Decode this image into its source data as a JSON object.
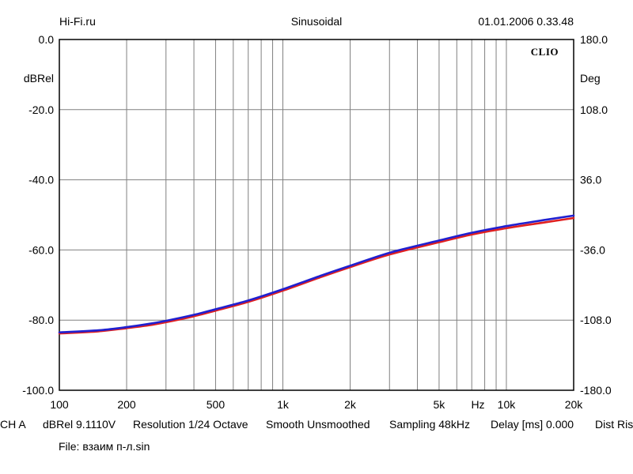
{
  "header": {
    "left": "Hi-Fi.ru",
    "center": "Sinusoidal",
    "right": "01.01.2006 0.33.48"
  },
  "chart_data": {
    "type": "line",
    "logo": "CLIO",
    "xscale": "log",
    "xlim": [
      100,
      20000
    ],
    "ylim": [
      -100,
      0
    ],
    "y2lim": [
      -180,
      180
    ],
    "grid": true,
    "ylabel": "dBRel",
    "y2label": "Deg",
    "xunit": "Hz",
    "x_ticks": [
      {
        "value": 100,
        "label": "100"
      },
      {
        "value": 200,
        "label": "200"
      },
      {
        "value": 500,
        "label": "500"
      },
      {
        "value": 1000,
        "label": "1k"
      },
      {
        "value": 2000,
        "label": "2k"
      },
      {
        "value": 5000,
        "label": "5k"
      },
      {
        "value": 10000,
        "label": "10k"
      },
      {
        "value": 20000,
        "label": "20k"
      }
    ],
    "x_grid": [
      100,
      200,
      300,
      400,
      500,
      600,
      700,
      800,
      900,
      1000,
      2000,
      3000,
      4000,
      5000,
      6000,
      7000,
      8000,
      9000,
      10000,
      20000
    ],
    "y_ticks": [
      {
        "value": 0,
        "label": "0.0"
      },
      {
        "value": -20,
        "label": "-20.0"
      },
      {
        "value": -40,
        "label": "-40.0"
      },
      {
        "value": -60,
        "label": "-60.0"
      },
      {
        "value": -80,
        "label": "-80.0"
      },
      {
        "value": -100,
        "label": "-100.0"
      }
    ],
    "y_grid": [
      0,
      -20,
      -40,
      -60,
      -80,
      -100
    ],
    "y2_ticks": [
      {
        "value": 180,
        "label": "180.0"
      },
      {
        "value": 108,
        "label": "108.0"
      },
      {
        "value": 36,
        "label": "36.0"
      },
      {
        "value": -36,
        "label": "-36.0"
      },
      {
        "value": -108,
        "label": "-108.0"
      },
      {
        "value": -180,
        "label": "-180.0"
      }
    ],
    "series": [
      {
        "color": "#e02020",
        "x": [
          100,
          150,
          200,
          250,
          300,
          400,
          500,
          700,
          1000,
          1500,
          2000,
          3000,
          5000,
          7000,
          10000,
          15000,
          20000
        ],
        "y": [
          -83.8,
          -83.2,
          -82.3,
          -81.5,
          -80.6,
          -78.9,
          -77.3,
          -74.8,
          -71.6,
          -67.6,
          -64.9,
          -61.3,
          -57.8,
          -55.6,
          -53.8,
          -52.1,
          -50.9
        ]
      },
      {
        "color": "#2020d0",
        "x": [
          100,
          150,
          200,
          250,
          300,
          400,
          500,
          700,
          1000,
          1500,
          2000,
          3000,
          5000,
          7000,
          10000,
          15000,
          20000
        ],
        "y": [
          -83.5,
          -82.9,
          -82.0,
          -81.1,
          -80.2,
          -78.5,
          -76.9,
          -74.4,
          -71.2,
          -67.2,
          -64.5,
          -60.8,
          -57.3,
          -55.1,
          -53.2,
          -51.4,
          -50.2
        ]
      }
    ]
  },
  "footer": {
    "ch": "CH A",
    "dbrel": "dBRel 9.1110V",
    "resolution": "Resolution 1/24 Octave",
    "smooth": "Smooth Unsmoothed",
    "sampling": "Sampling 48kHz",
    "delay": "Delay [ms] 0.000",
    "dist": "Dist Rise",
    "file": "File: взаим п-л.sin"
  }
}
